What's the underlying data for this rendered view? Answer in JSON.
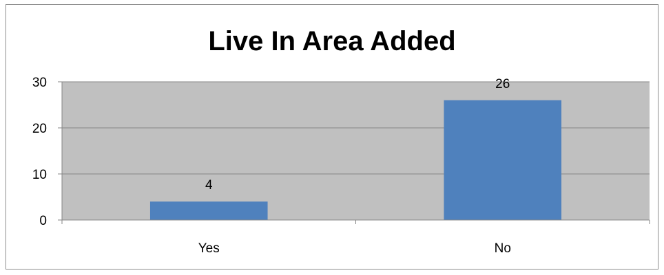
{
  "chart_data": {
    "type": "bar",
    "title": "Live In Area Added",
    "categories": [
      "Yes",
      "No"
    ],
    "values": [
      4,
      26
    ],
    "data_labels": [
      "4",
      "26"
    ],
    "ylim": [
      0,
      30
    ],
    "yticks": [
      0,
      10,
      20,
      30
    ],
    "ytick_labels": [
      "0",
      "10",
      "20",
      "30"
    ],
    "xlabel": "",
    "ylabel": "",
    "grid": true,
    "legend": "none",
    "colors": {
      "bar": "#4f81bd",
      "plot_background": "#c0c0c0",
      "gridline": "#868686",
      "axis": "#868686"
    }
  }
}
